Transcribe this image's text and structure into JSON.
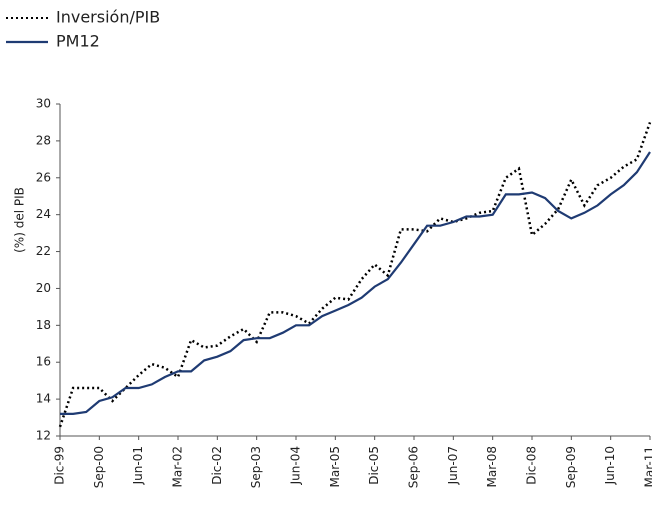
{
  "chart_data": {
    "type": "line",
    "y_label": "(%) del PIB",
    "categories": [
      "Dic-99",
      null,
      null,
      "Sep-00",
      null,
      null,
      "Jun-01",
      null,
      null,
      "Mar-02",
      null,
      null,
      "Dic-02",
      null,
      null,
      "Sep-03",
      null,
      null,
      "Jun-04",
      null,
      null,
      "Mar-05",
      null,
      null,
      "Dic-05",
      null,
      null,
      "Sep-06",
      null,
      null,
      "Jun-07",
      null,
      null,
      "Mar-08",
      null,
      null,
      "Dic-08",
      null,
      null,
      "Sep-09",
      null,
      null,
      "Jun-10",
      null,
      null,
      "Mar-11"
    ],
    "series": [
      {
        "name": "Inversión/PIB",
        "color": "#000000",
        "style": "dotted",
        "values": [
          12.5,
          14.6,
          14.6,
          14.6,
          13.9,
          14.6,
          15.3,
          15.9,
          15.7,
          15.2,
          17.2,
          16.8,
          16.9,
          17.4,
          17.8,
          17.1,
          18.7,
          18.7,
          18.5,
          18.1,
          18.9,
          19.5,
          19.4,
          20.5,
          21.3,
          20.7,
          23.2,
          23.2,
          23.1,
          23.8,
          23.6,
          23.8,
          24.1,
          24.2,
          26.0,
          26.5,
          22.9,
          23.5,
          24.3,
          25.9,
          24.5,
          25.6,
          26.0,
          26.6,
          27.0,
          29.0
        ]
      },
      {
        "name": "PM12",
        "color": "#1f3b73",
        "style": "solid",
        "values": [
          13.2,
          13.2,
          13.3,
          13.9,
          14.1,
          14.6,
          14.6,
          14.8,
          15.2,
          15.5,
          15.5,
          16.1,
          16.3,
          16.6,
          17.2,
          17.3,
          17.3,
          17.6,
          18.0,
          18.0,
          18.5,
          18.8,
          19.1,
          19.5,
          20.1,
          20.5,
          21.4,
          22.4,
          23.4,
          23.4,
          23.6,
          23.9,
          23.9,
          24.0,
          25.1,
          25.1,
          25.2,
          24.9,
          24.2,
          23.8,
          24.1,
          24.5,
          25.1,
          25.6,
          26.3,
          27.4
        ]
      }
    ],
    "ylim": [
      12,
      30
    ],
    "yticks": [
      12,
      14,
      16,
      18,
      20,
      22,
      24,
      26,
      28,
      30
    ],
    "grid": false,
    "legend": "top-left"
  }
}
